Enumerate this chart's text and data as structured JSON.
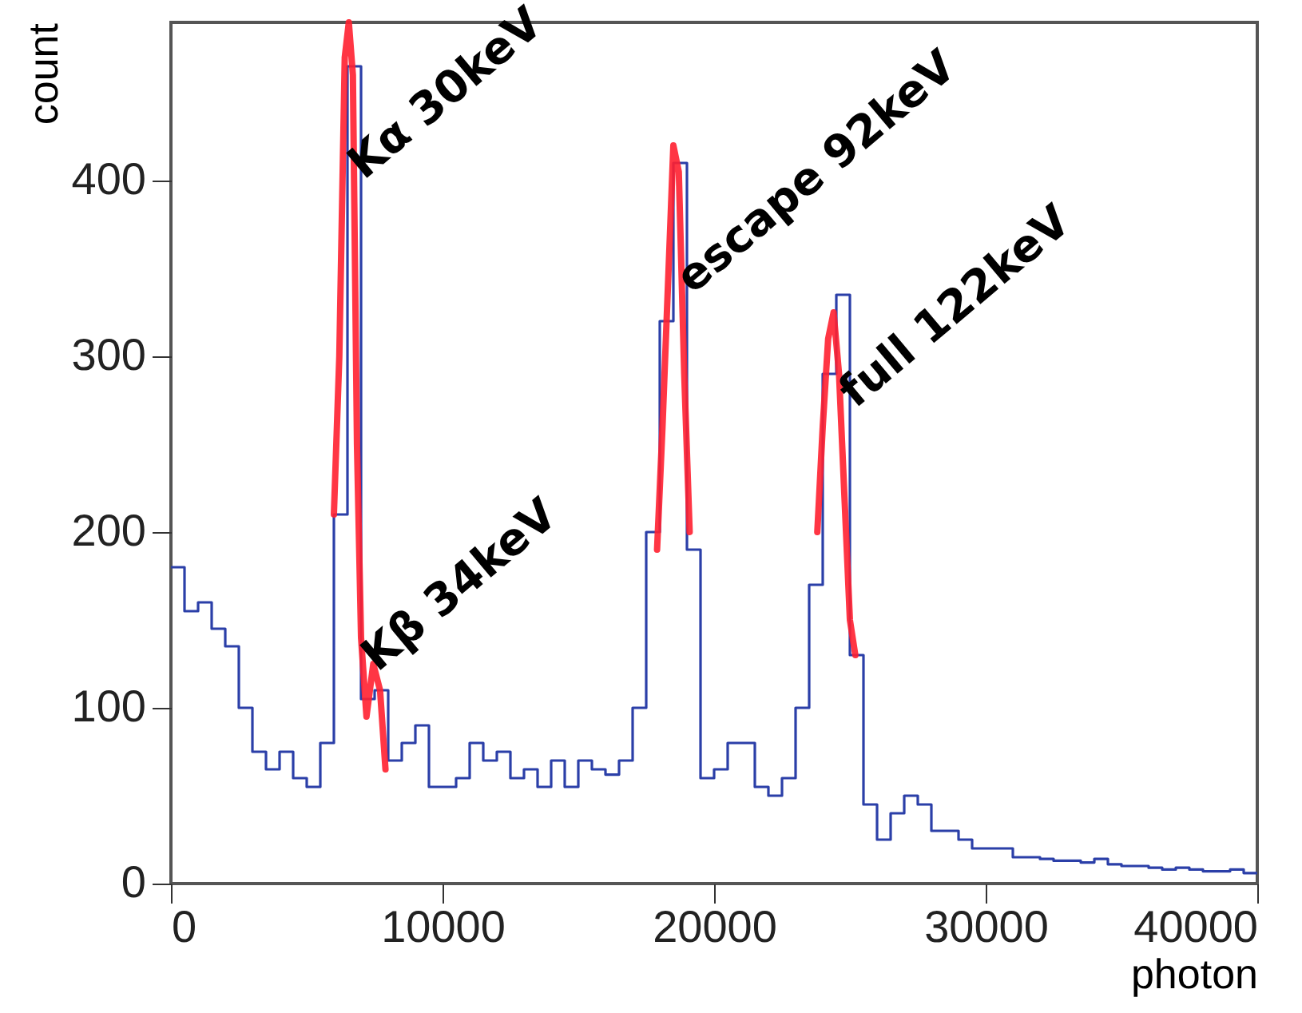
{
  "chart_data": {
    "type": "histogram",
    "xlabel": "photon",
    "ylabel": "count",
    "color": "#2b3fa8",
    "bins": [
      0,
      500,
      1000,
      1500,
      2000,
      2500,
      3000,
      3500,
      4000,
      4500,
      5000,
      5500,
      6000,
      6500,
      7000,
      7500,
      8000,
      8500,
      9000,
      9500,
      10000,
      10500,
      11000,
      11500,
      12000,
      12500,
      13000,
      13500,
      14000,
      14500,
      15000,
      15500,
      16000,
      16500,
      17000,
      17500,
      18000,
      18500,
      19000,
      19500,
      20000,
      20500,
      21000,
      21500,
      22000,
      22500,
      23000,
      23500,
      24000,
      24500,
      25000,
      25500,
      26000,
      26500,
      27000,
      27500,
      28000,
      28500,
      29000,
      29500,
      30000,
      30500,
      31000,
      31500,
      32000,
      32500,
      33000,
      33500,
      34000,
      34500,
      35000,
      35500,
      36000,
      36500,
      37000,
      37500,
      38000,
      38500,
      39000,
      39500,
      40000
    ],
    "values": [
      180,
      155,
      160,
      145,
      135,
      100,
      75,
      65,
      75,
      60,
      55,
      80,
      210,
      465,
      105,
      110,
      70,
      80,
      90,
      55,
      55,
      60,
      80,
      70,
      75,
      60,
      65,
      55,
      70,
      55,
      70,
      65,
      62,
      70,
      100,
      200,
      320,
      410,
      190,
      60,
      65,
      80,
      80,
      55,
      50,
      60,
      100,
      170,
      290,
      335,
      130,
      45,
      25,
      40,
      50,
      45,
      30,
      30,
      25,
      20,
      20,
      20,
      15,
      15,
      14,
      13,
      13,
      12,
      14,
      11,
      10,
      10,
      9,
      8,
      9,
      8,
      7,
      7,
      8,
      6
    ],
    "series": [
      {
        "type": "line",
        "color": "#ff2030",
        "x": [
          6000,
          6200,
          6400,
          6550,
          6700,
          6850,
          7000,
          7200,
          7450,
          7700,
          7900
        ],
        "values": [
          210,
          300,
          470,
          490,
          460,
          250,
          140,
          95,
          125,
          110,
          65
        ]
      },
      {
        "type": "line",
        "color": "#ff2030",
        "x": [
          17900,
          18100,
          18300,
          18500,
          18700,
          18900,
          19100
        ],
        "values": [
          190,
          260,
          340,
          420,
          405,
          290,
          200
        ]
      },
      {
        "type": "line",
        "color": "#ff2030",
        "x": [
          23800,
          24000,
          24200,
          24400,
          24600,
          24800,
          25000,
          25200
        ],
        "values": [
          200,
          260,
          310,
          325,
          290,
          220,
          150,
          130
        ]
      }
    ],
    "xlim": [
      0,
      40000
    ],
    "ylim": [
      0,
      490
    ],
    "xticks": [
      0,
      10000,
      20000,
      30000,
      40000
    ],
    "yticks": [
      0,
      100,
      200,
      300,
      400
    ],
    "annotations": [
      {
        "text": "Kα 30keV",
        "x": 7100,
        "y": 400
      },
      {
        "text": "Kβ 34keV",
        "x": 7600,
        "y": 120
      },
      {
        "text": "escape 92keV",
        "x": 19200,
        "y": 335
      },
      {
        "text": "full 122keV",
        "x": 25200,
        "y": 270
      }
    ]
  }
}
